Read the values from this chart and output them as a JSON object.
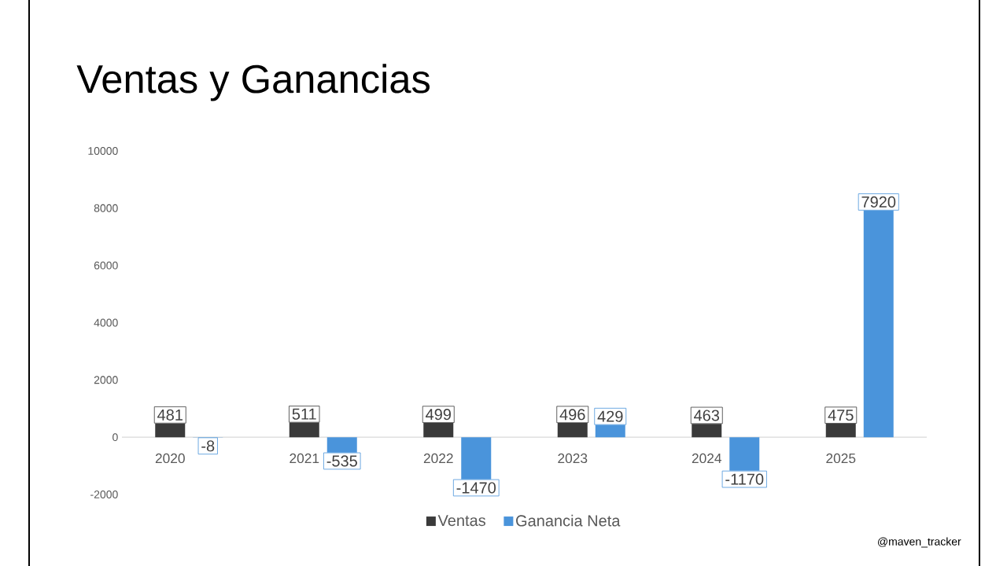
{
  "chart_data": {
    "type": "bar",
    "title": "Ventas y Ganancias",
    "categories": [
      "2020",
      "2021",
      "2022",
      "2023",
      "2024",
      "2025"
    ],
    "series": [
      {
        "name": "Ventas",
        "color": "#3a3a3a",
        "values": [
          481,
          511,
          499,
          496,
          463,
          475
        ]
      },
      {
        "name": "Ganancia Neta",
        "color": "#4a94db",
        "values": [
          -8,
          -535,
          -1470,
          429,
          -1170,
          7920
        ]
      }
    ],
    "ylim": [
      -2000,
      10000
    ],
    "yticks": [
      -2000,
      0,
      2000,
      4000,
      6000,
      8000,
      10000
    ],
    "data_labels": true,
    "legend": "bottom",
    "grid": false,
    "annotations": [
      "@maven_tracker"
    ]
  }
}
